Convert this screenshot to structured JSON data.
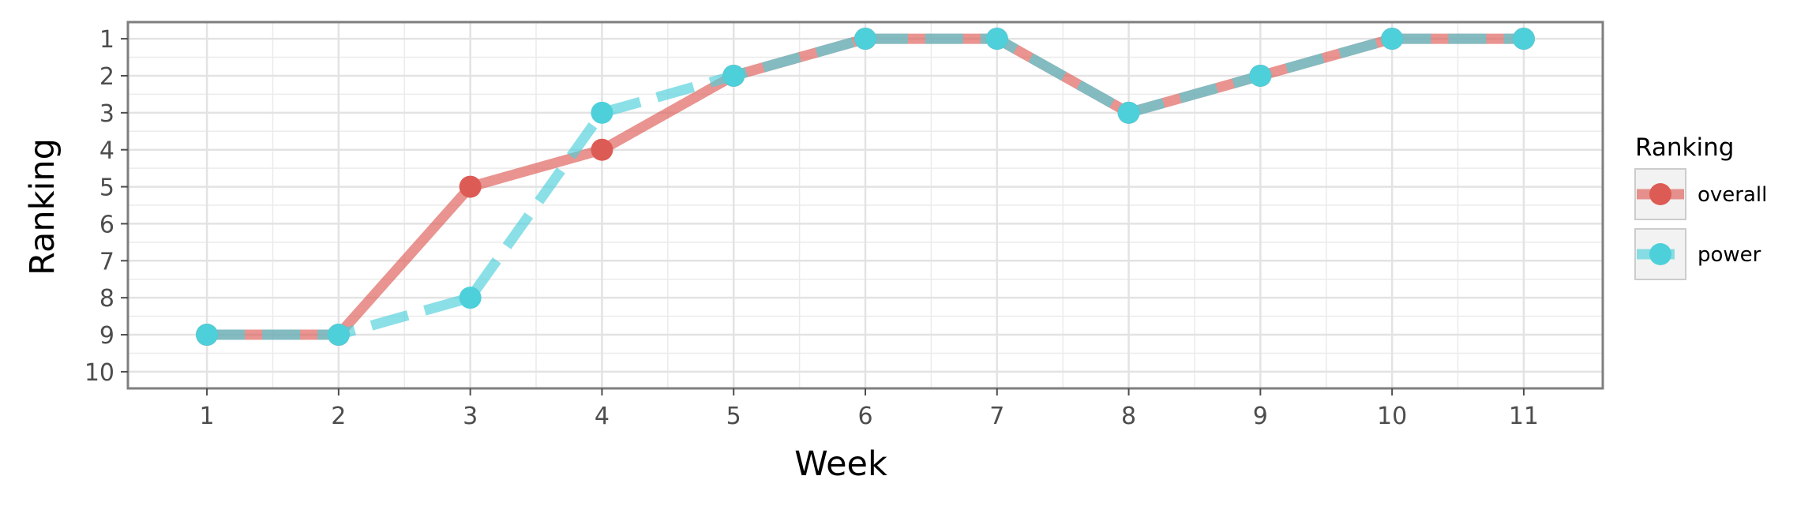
{
  "chart_data": {
    "type": "line",
    "xlabel": "Week",
    "ylabel": "Ranking",
    "x": [
      1,
      2,
      3,
      4,
      5,
      6,
      7,
      8,
      9,
      10,
      11
    ],
    "x_ticks": [
      "1",
      "2",
      "3",
      "4",
      "5",
      "6",
      "7",
      "8",
      "9",
      "10",
      "11"
    ],
    "y_ticks": [
      "1",
      "2",
      "3",
      "4",
      "5",
      "6",
      "7",
      "8",
      "9",
      "10"
    ],
    "xlim": [
      0.4,
      11.6
    ],
    "ylim": [
      10.45,
      0.55
    ],
    "y_reversed": true,
    "grid": true,
    "legend": {
      "title": "Ranking",
      "position": "right"
    },
    "series": [
      {
        "name": "overall",
        "values": [
          9,
          9,
          5,
          4,
          2,
          1,
          1,
          3,
          2,
          1,
          1
        ],
        "color": "#dd5b55",
        "line_style": "solid"
      },
      {
        "name": "power",
        "values": [
          9,
          9,
          8,
          3,
          2,
          1,
          1,
          3,
          2,
          1,
          1
        ],
        "color": "#4dd0da",
        "line_style": "dashed"
      }
    ]
  }
}
